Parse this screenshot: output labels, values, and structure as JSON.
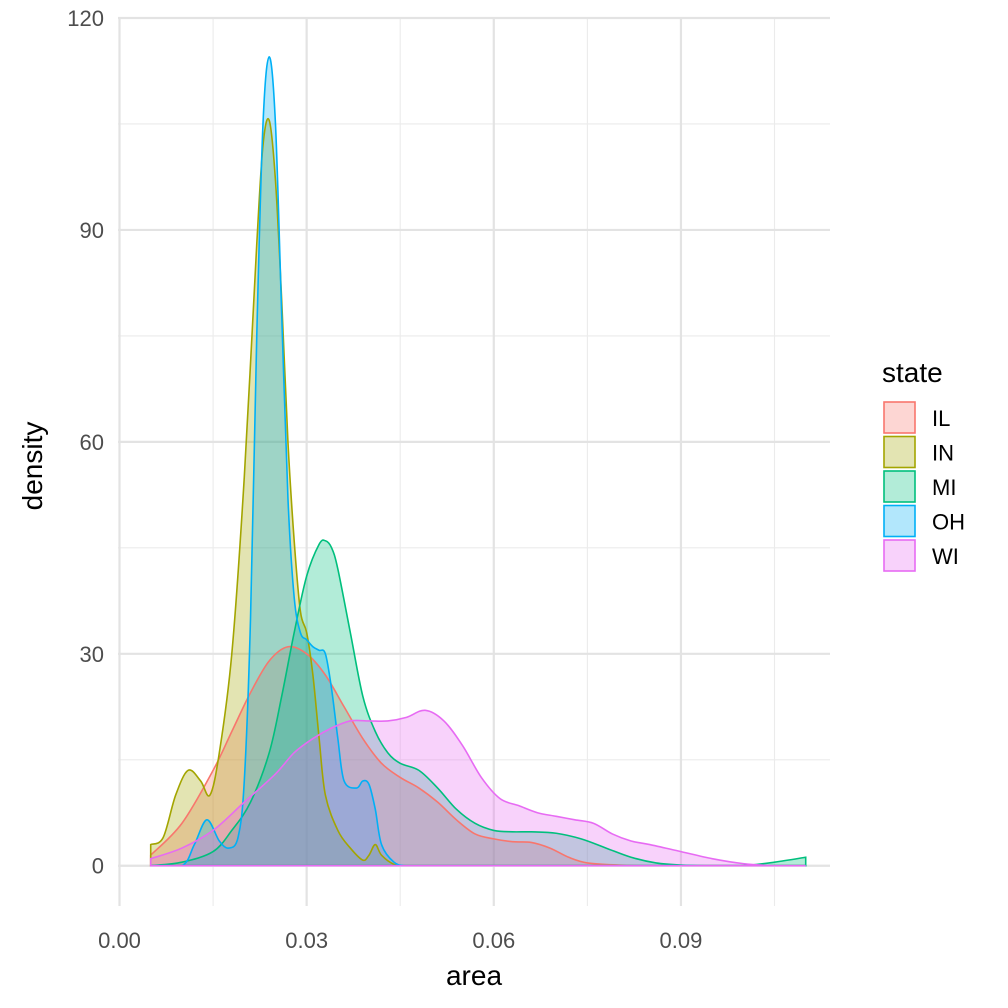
{
  "chart_data": {
    "type": "area",
    "subtype": "density",
    "title": "",
    "xlabel": "area",
    "ylabel": "density",
    "xlim": [
      -0.000243,
      0.113893
    ],
    "ylim": [
      -5.7,
      120
    ],
    "x_ticks": [
      0.0,
      0.03,
      0.06,
      0.09
    ],
    "x_tick_labels": [
      "0.00",
      "0.03",
      "0.06",
      "0.09"
    ],
    "y_ticks": [
      0,
      30,
      60,
      90,
      120
    ],
    "y_tick_labels": [
      "0",
      "30",
      "60",
      "90",
      "120"
    ],
    "grid": true,
    "fill_opacity": 0.3,
    "legend": {
      "title": "state",
      "position": "right"
    },
    "series": [
      {
        "name": "IL",
        "color": "#F8766D",
        "x": [
          0.005,
          0.01,
          0.015,
          0.018,
          0.021,
          0.024,
          0.027,
          0.03,
          0.033,
          0.036,
          0.039,
          0.042,
          0.045,
          0.048,
          0.051,
          0.054,
          0.057,
          0.06,
          0.063,
          0.066,
          0.069,
          0.072,
          0.075,
          0.08,
          0.085,
          0.09,
          0.1,
          0.11
        ],
        "y": [
          1.5,
          6.0,
          13.5,
          19.0,
          24.5,
          29.0,
          31.0,
          30.0,
          27.0,
          22.5,
          18.0,
          14.5,
          12.5,
          11.0,
          9.0,
          6.5,
          4.5,
          3.8,
          3.4,
          3.3,
          2.5,
          1.2,
          0.4,
          0.1,
          0.0,
          0.0,
          0.0,
          0.0
        ]
      },
      {
        "name": "IN",
        "color": "#A3A500",
        "x": [
          0.005,
          0.007,
          0.009,
          0.011,
          0.013,
          0.0145,
          0.016,
          0.018,
          0.02,
          0.022,
          0.023,
          0.024,
          0.025,
          0.026,
          0.027,
          0.028,
          0.029,
          0.03,
          0.031,
          0.032,
          0.033,
          0.035,
          0.037,
          0.039,
          0.04,
          0.041,
          0.042,
          0.044,
          0.046,
          0.05,
          0.055,
          0.06,
          0.07,
          0.08,
          0.09,
          0.1,
          0.11
        ],
        "y": [
          3.0,
          4.0,
          10.0,
          13.5,
          12.0,
          10.0,
          16.0,
          30.0,
          55.0,
          88.0,
          102.0,
          105.5,
          97.0,
          80.0,
          60.0,
          46.0,
          36.0,
          33.0,
          27.0,
          18.0,
          10.0,
          5.0,
          2.5,
          0.8,
          1.5,
          3.0,
          1.5,
          0.2,
          0.0,
          0.0,
          0.0,
          0.0,
          0.0,
          0.0,
          0.0,
          0.0,
          0.0
        ]
      },
      {
        "name": "MI",
        "color": "#00BF7D",
        "x": [
          0.005,
          0.01,
          0.015,
          0.018,
          0.021,
          0.024,
          0.026,
          0.028,
          0.03,
          0.032,
          0.033,
          0.034,
          0.035,
          0.037,
          0.039,
          0.041,
          0.043,
          0.045,
          0.048,
          0.051,
          0.054,
          0.057,
          0.06,
          0.063,
          0.066,
          0.07,
          0.074,
          0.078,
          0.082,
          0.086,
          0.09,
          0.095,
          0.1,
          0.105,
          0.11
        ],
        "y": [
          0.0,
          0.5,
          2.0,
          5.0,
          9.0,
          16.0,
          24.0,
          33.0,
          41.0,
          45.5,
          46.0,
          45.0,
          42.0,
          33.0,
          24.0,
          19.0,
          16.0,
          14.5,
          13.5,
          11.0,
          8.0,
          6.0,
          5.0,
          4.8,
          4.8,
          4.6,
          3.8,
          2.5,
          1.2,
          0.4,
          0.1,
          0.0,
          0.0,
          0.5,
          1.2
        ]
      },
      {
        "name": "OH",
        "color": "#00B0F6",
        "x": [
          0.005,
          0.01,
          0.012,
          0.014,
          0.016,
          0.0175,
          0.019,
          0.02,
          0.021,
          0.022,
          0.023,
          0.024,
          0.025,
          0.026,
          0.027,
          0.028,
          0.029,
          0.03,
          0.031,
          0.032,
          0.033,
          0.034,
          0.035,
          0.036,
          0.038,
          0.039,
          0.04,
          0.041,
          0.042,
          0.044,
          0.046,
          0.05,
          0.055,
          0.06,
          0.07,
          0.08,
          0.09,
          0.1,
          0.11
        ],
        "y": [
          0.0,
          0.0,
          3.0,
          6.5,
          3.5,
          2.5,
          4.0,
          12.0,
          35.0,
          75.0,
          105.0,
          114.5,
          105.0,
          78.0,
          52.0,
          38.0,
          33.0,
          32.0,
          31.0,
          30.5,
          30.0,
          25.0,
          18.0,
          12.0,
          11.0,
          12.0,
          11.5,
          8.0,
          3.0,
          0.5,
          0.0,
          0.0,
          0.0,
          0.0,
          0.0,
          0.0,
          0.0,
          0.0,
          0.0
        ]
      },
      {
        "name": "WI",
        "color": "#E76BF3",
        "x": [
          0.005,
          0.01,
          0.015,
          0.02,
          0.025,
          0.028,
          0.031,
          0.034,
          0.037,
          0.04,
          0.043,
          0.046,
          0.049,
          0.052,
          0.055,
          0.058,
          0.061,
          0.064,
          0.067,
          0.07,
          0.073,
          0.076,
          0.079,
          0.082,
          0.085,
          0.09,
          0.095,
          0.1,
          0.105,
          0.11
        ],
        "y": [
          1.0,
          2.5,
          5.0,
          9.0,
          13.0,
          16.0,
          18.0,
          19.5,
          20.5,
          20.5,
          20.5,
          21.0,
          22.0,
          20.5,
          17.0,
          12.5,
          9.5,
          8.5,
          7.5,
          7.0,
          6.5,
          6.0,
          4.5,
          3.5,
          3.0,
          2.0,
          1.0,
          0.3,
          0.0,
          0.0
        ]
      }
    ]
  }
}
